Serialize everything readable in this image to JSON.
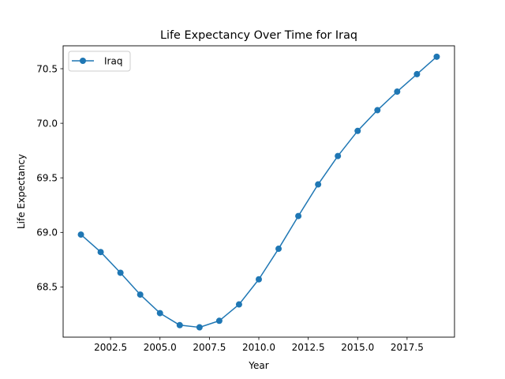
{
  "chart_data": {
    "type": "line",
    "title": "Life Expectancy Over Time for Iraq",
    "xlabel": "Year",
    "ylabel": "Life Expectancy",
    "xlim": [
      2000.1,
      2019.9
    ],
    "ylim": [
      68.04,
      70.71
    ],
    "x_ticks": [
      2002.5,
      2005.0,
      2007.5,
      2010.0,
      2012.5,
      2015.0,
      2017.5
    ],
    "x_tick_labels": [
      "2002.5",
      "2005.0",
      "2007.5",
      "2010.0",
      "2012.5",
      "2015.0",
      "2017.5"
    ],
    "y_ticks": [
      68.5,
      69.0,
      69.5,
      70.0,
      70.5
    ],
    "y_tick_labels": [
      "68.5",
      "69.0",
      "69.5",
      "70.0",
      "70.5"
    ],
    "grid": false,
    "legend_position": "top-left",
    "series": [
      {
        "name": "Iraq",
        "color": "#1f77b4",
        "marker": "circle",
        "x": [
          2001,
          2002,
          2003,
          2004,
          2005,
          2006,
          2007,
          2008,
          2009,
          2010,
          2011,
          2012,
          2013,
          2014,
          2015,
          2016,
          2017,
          2018,
          2019
        ],
        "y": [
          68.98,
          68.82,
          68.63,
          68.43,
          68.26,
          68.15,
          68.13,
          68.19,
          68.34,
          68.57,
          68.85,
          69.15,
          69.44,
          69.7,
          69.93,
          70.12,
          70.29,
          70.45,
          70.61
        ]
      }
    ]
  }
}
